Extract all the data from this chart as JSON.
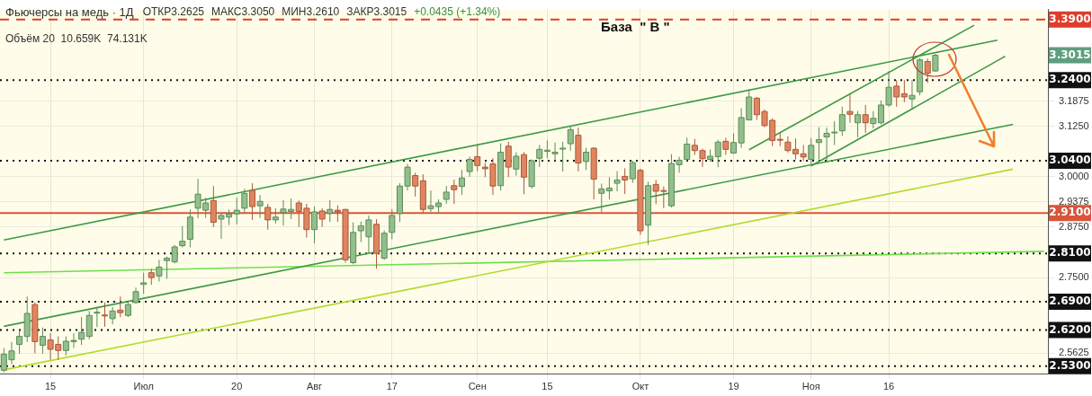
{
  "chart_data": {
    "type": "candlestick",
    "title": "Фьючерсы на медь · 1Д",
    "annotations": [
      "ОТКР3.2625",
      "МАКС3.3050",
      "МИН3.2610",
      "ЗАКР3.3015",
      "+0.0435 (+1.34%)",
      "Объём 20  10.659K  74.131K",
      "База  \" В \"",
      "3.3015"
    ],
    "categories": [
      null,
      null,
      null,
      null,
      null,
      null,
      "15",
      null,
      null,
      null,
      null,
      null,
      null,
      null,
      null,
      null,
      null,
      null,
      "Июл",
      null,
      null,
      null,
      null,
      null,
      null,
      null,
      null,
      null,
      null,
      null,
      "20",
      null,
      null,
      null,
      null,
      null,
      null,
      null,
      null,
      null,
      "Авг",
      null,
      null,
      null,
      null,
      null,
      null,
      null,
      null,
      null,
      "17",
      null,
      null,
      null,
      null,
      null,
      null,
      null,
      null,
      null,
      null,
      "Сен",
      null,
      null,
      null,
      null,
      null,
      null,
      null,
      null,
      "15",
      null,
      null,
      null,
      null,
      null,
      null,
      null,
      null,
      null,
      null,
      null,
      "Окт",
      null,
      null,
      null,
      null,
      null,
      null,
      null,
      null,
      null,
      null,
      null,
      "19",
      null,
      null,
      null,
      null,
      null,
      null,
      null,
      null,
      null,
      "Ноя",
      null,
      null,
      null,
      null,
      null,
      null,
      null,
      null,
      null,
      "16",
      null,
      null,
      null,
      null,
      null,
      null,
      null,
      null,
      null,
      null,
      null,
      null,
      null,
      null,
      null,
      null,
      null,
      null,
      null,
      null
    ],
    "ohlc": [
      [
        2.52,
        2.575,
        2.515,
        2.56
      ],
      [
        2.546,
        2.59,
        2.535,
        2.568
      ],
      [
        2.584,
        2.619,
        2.561,
        2.604
      ],
      [
        2.604,
        2.703,
        2.59,
        2.661
      ],
      [
        2.683,
        2.688,
        2.562,
        2.591
      ],
      [
        2.582,
        2.626,
        2.561,
        2.604
      ],
      [
        2.595,
        2.612,
        2.546,
        2.572
      ],
      [
        2.584,
        2.604,
        2.546,
        2.569
      ],
      [
        2.569,
        2.604,
        2.557,
        2.592
      ],
      [
        2.591,
        2.612,
        2.575,
        2.594
      ],
      [
        2.597,
        2.652,
        2.583,
        2.614
      ],
      [
        2.604,
        2.667,
        2.597,
        2.656
      ],
      [
        2.662,
        2.677,
        2.627,
        2.664
      ],
      [
        2.657,
        2.688,
        2.628,
        2.655
      ],
      [
        2.648,
        2.677,
        2.634,
        2.667
      ],
      [
        2.669,
        2.703,
        2.652,
        2.663
      ],
      [
        2.656,
        2.692,
        2.652,
        2.683
      ],
      [
        2.688,
        2.725,
        2.685,
        2.715
      ],
      [
        2.733,
        2.762,
        2.71,
        2.737
      ],
      [
        2.762,
        2.772,
        2.732,
        2.75
      ],
      [
        2.754,
        2.794,
        2.74,
        2.776
      ],
      [
        2.792,
        2.802,
        2.747,
        2.798
      ],
      [
        2.789,
        2.831,
        2.785,
        2.826
      ],
      [
        2.829,
        2.878,
        2.825,
        2.84
      ],
      [
        2.845,
        2.919,
        2.825,
        2.9
      ],
      [
        2.922,
        2.995,
        2.897,
        2.957
      ],
      [
        2.917,
        2.948,
        2.898,
        2.935
      ],
      [
        2.941,
        2.977,
        2.875,
        2.887
      ],
      [
        2.895,
        2.911,
        2.846,
        2.904
      ],
      [
        2.9,
        2.919,
        2.88,
        2.908
      ],
      [
        2.908,
        2.948,
        2.882,
        2.917
      ],
      [
        2.922,
        2.97,
        2.911,
        2.959
      ],
      [
        2.966,
        2.984,
        2.893,
        2.926
      ],
      [
        2.928,
        2.955,
        2.898,
        2.939
      ],
      [
        2.924,
        2.933,
        2.869,
        2.893
      ],
      [
        2.893,
        2.922,
        2.884,
        2.9
      ],
      [
        2.911,
        2.942,
        2.879,
        2.92
      ],
      [
        2.914,
        2.946,
        2.895,
        2.919
      ],
      [
        2.935,
        2.941,
        2.876,
        2.914
      ],
      [
        2.922,
        2.933,
        2.849,
        2.869
      ],
      [
        2.869,
        2.926,
        2.835,
        2.913
      ],
      [
        2.915,
        2.922,
        2.876,
        2.895
      ],
      [
        2.909,
        2.942,
        2.888,
        2.919
      ],
      [
        2.917,
        2.929,
        2.888,
        2.913
      ],
      [
        2.919,
        2.92,
        2.787,
        2.794
      ],
      [
        2.787,
        2.887,
        2.783,
        2.862
      ],
      [
        2.866,
        2.889,
        2.838,
        2.878
      ],
      [
        2.851,
        2.904,
        2.809,
        2.893
      ],
      [
        2.882,
        2.895,
        2.772,
        2.81
      ],
      [
        2.798,
        2.867,
        2.794,
        2.86
      ],
      [
        2.862,
        2.92,
        2.845,
        2.904
      ],
      [
        2.909,
        2.984,
        2.888,
        2.977
      ],
      [
        2.977,
        3.032,
        2.966,
        3.024
      ],
      [
        3.003,
        3.01,
        2.951,
        2.977
      ],
      [
        2.99,
        3.006,
        2.908,
        2.919
      ],
      [
        2.921,
        2.966,
        2.913,
        2.928
      ],
      [
        2.926,
        2.944,
        2.911,
        2.935
      ],
      [
        2.944,
        2.977,
        2.933,
        2.962
      ],
      [
        2.978,
        2.993,
        2.933,
        2.968
      ],
      [
        2.976,
        3.017,
        2.955,
        2.997
      ],
      [
        3.013,
        3.05,
        3.0,
        3.043
      ],
      [
        3.05,
        3.079,
        3.014,
        3.028
      ],
      [
        3.024,
        3.035,
        2.999,
        3.02
      ],
      [
        3.032,
        3.046,
        2.955,
        2.977
      ],
      [
        2.978,
        3.083,
        2.966,
        3.061
      ],
      [
        3.076,
        3.087,
        2.999,
        3.024
      ],
      [
        3.019,
        3.061,
        3.003,
        3.051
      ],
      [
        3.055,
        3.061,
        2.957,
        2.999
      ],
      [
        2.976,
        3.043,
        2.971,
        3.04
      ],
      [
        3.046,
        3.079,
        3.024,
        3.068
      ],
      [
        3.063,
        3.09,
        3.046,
        3.066
      ],
      [
        3.057,
        3.085,
        3.039,
        3.061
      ],
      [
        3.07,
        3.087,
        3.013,
        3.071
      ],
      [
        3.082,
        3.127,
        3.065,
        3.117
      ],
      [
        3.103,
        3.122,
        3.013,
        3.034
      ],
      [
        3.038,
        3.072,
        3.017,
        3.061
      ],
      [
        3.071,
        3.073,
        2.944,
        2.994
      ],
      [
        2.959,
        2.983,
        2.911,
        2.97
      ],
      [
        2.965,
        2.999,
        2.944,
        2.972
      ],
      [
        2.984,
        3.014,
        2.964,
        2.992
      ],
      [
        3.001,
        3.021,
        2.957,
        2.992
      ],
      [
        2.995,
        3.04,
        2.985,
        3.035
      ],
      [
        3.016,
        3.02,
        2.856,
        2.866
      ],
      [
        2.88,
        2.988,
        2.831,
        2.978
      ],
      [
        2.981,
        2.992,
        2.932,
        2.964
      ],
      [
        2.966,
        2.976,
        2.922,
        2.965
      ],
      [
        2.928,
        3.056,
        2.924,
        3.033
      ],
      [
        3.03,
        3.05,
        3.01,
        3.041
      ],
      [
        3.043,
        3.097,
        3.039,
        3.081
      ],
      [
        3.078,
        3.094,
        3.054,
        3.065
      ],
      [
        3.065,
        3.07,
        3.024,
        3.045
      ],
      [
        3.043,
        3.068,
        3.037,
        3.051
      ],
      [
        3.05,
        3.092,
        3.024,
        3.086
      ],
      [
        3.088,
        3.097,
        3.054,
        3.068
      ],
      [
        3.059,
        3.108,
        3.057,
        3.085
      ],
      [
        3.084,
        3.17,
        3.072,
        3.147
      ],
      [
        3.141,
        3.217,
        3.141,
        3.198
      ],
      [
        3.195,
        3.198,
        3.141,
        3.154
      ],
      [
        3.162,
        3.167,
        3.123,
        3.127
      ],
      [
        3.14,
        3.145,
        3.076,
        3.09
      ],
      [
        3.093,
        3.108,
        3.076,
        3.092
      ],
      [
        3.086,
        3.1,
        3.06,
        3.065
      ],
      [
        3.068,
        3.095,
        3.043,
        3.057
      ],
      [
        3.057,
        3.079,
        3.039,
        3.049
      ],
      [
        3.043,
        3.096,
        3.028,
        3.078
      ],
      [
        3.085,
        3.123,
        3.043,
        3.092
      ],
      [
        3.099,
        3.122,
        3.035,
        3.108
      ],
      [
        3.11,
        3.138,
        3.079,
        3.111
      ],
      [
        3.114,
        3.174,
        3.101,
        3.154
      ],
      [
        3.162,
        3.205,
        3.134,
        3.155
      ],
      [
        3.134,
        3.163,
        3.098,
        3.154
      ],
      [
        3.154,
        3.178,
        3.109,
        3.134
      ],
      [
        3.132,
        3.163,
        3.12,
        3.145
      ],
      [
        3.134,
        3.189,
        3.13,
        3.178
      ],
      [
        3.178,
        3.262,
        3.174,
        3.222
      ],
      [
        3.225,
        3.24,
        3.174,
        3.198
      ],
      [
        3.206,
        3.24,
        3.185,
        3.198
      ],
      [
        3.193,
        3.24,
        3.168,
        3.202
      ],
      [
        3.211,
        3.295,
        3.202,
        3.29
      ],
      [
        3.286,
        3.293,
        3.233,
        3.257
      ],
      [
        3.2625,
        3.305,
        3.261,
        3.3015
      ],
      null,
      null,
      null,
      null,
      null,
      null,
      null,
      null,
      null,
      null,
      null,
      null,
      null,
      null
    ],
    "series": [
      {
        "type": "line",
        "color": "#3c9a46",
        "values": [
          null,
          null,
          null,
          null,
          null,
          null,
          null,
          null,
          null,
          null,
          null,
          null,
          null,
          null,
          null,
          null,
          null,
          null,
          null,
          null,
          null,
          null,
          null,
          null,
          null,
          null,
          null,
          null,
          null,
          null,
          null,
          null,
          null,
          null,
          null,
          null,
          null,
          null,
          null,
          null,
          null,
          null,
          null,
          null,
          null,
          null,
          null,
          null,
          null,
          null,
          null,
          null,
          null,
          null,
          null,
          null,
          null,
          null,
          null,
          null,
          null,
          null,
          null,
          null,
          null,
          null,
          null,
          null,
          null,
          null,
          null,
          null,
          null,
          null,
          null,
          null,
          null,
          null,
          null,
          null,
          null,
          null,
          null,
          null,
          null,
          null,
          null,
          null,
          null,
          null,
          null,
          null,
          null,
          null,
          null,
          null,
          3.067,
          null,
          null,
          null,
          null,
          null,
          null,
          null,
          null,
          null,
          null,
          null,
          null,
          null,
          null,
          null,
          null,
          null,
          null,
          null,
          null,
          null,
          null,
          null,
          null,
          null,
          null,
          null,
          null,
          3.376,
          null,
          null,
          null,
          null,
          null,
          null,
          null,
          null,
          null
        ]
      },
      {
        "type": "line",
        "color": "#3c9a46",
        "values": [
          2.843,
          null,
          null,
          null,
          null,
          null,
          null,
          null,
          null,
          null,
          null,
          null,
          null,
          null,
          null,
          null,
          null,
          null,
          null,
          null,
          null,
          null,
          null,
          null,
          null,
          null,
          null,
          null,
          null,
          null,
          null,
          null,
          null,
          null,
          null,
          null,
          null,
          null,
          null,
          null,
          null,
          null,
          null,
          null,
          null,
          null,
          null,
          null,
          null,
          null,
          null,
          null,
          null,
          null,
          null,
          null,
          null,
          null,
          null,
          null,
          null,
          null,
          null,
          null,
          null,
          null,
          null,
          null,
          null,
          null,
          null,
          null,
          null,
          null,
          null,
          null,
          null,
          null,
          null,
          null,
          null,
          null,
          null,
          null,
          null,
          null,
          null,
          null,
          null,
          null,
          null,
          null,
          null,
          null,
          null,
          null,
          null,
          null,
          null,
          null,
          null,
          null,
          null,
          null,
          null,
          null,
          null,
          null,
          null,
          null,
          null,
          null,
          null,
          null,
          null,
          null,
          null,
          null,
          null,
          null,
          null,
          null,
          null,
          null,
          null,
          null,
          null,
          null,
          3.339,
          null,
          null,
          null,
          null,
          null,
          null
        ]
      },
      {
        "type": "line",
        "color": "#3c9a46",
        "values": [
          null,
          null,
          null,
          null,
          null,
          null,
          null,
          null,
          null,
          null,
          null,
          null,
          null,
          null,
          null,
          null,
          null,
          null,
          null,
          null,
          null,
          null,
          null,
          null,
          null,
          null,
          null,
          null,
          null,
          null,
          null,
          null,
          null,
          null,
          null,
          null,
          null,
          null,
          null,
          null,
          null,
          null,
          null,
          null,
          null,
          null,
          null,
          null,
          null,
          null,
          null,
          null,
          null,
          null,
          null,
          null,
          null,
          null,
          null,
          null,
          null,
          null,
          null,
          null,
          null,
          null,
          null,
          null,
          null,
          null,
          null,
          null,
          null,
          null,
          null,
          null,
          null,
          null,
          null,
          null,
          null,
          null,
          null,
          null,
          null,
          null,
          null,
          null,
          null,
          null,
          null,
          null,
          null,
          null,
          null,
          null,
          null,
          null,
          null,
          null,
          null,
          null,
          null,
          null,
          3.027,
          null,
          null,
          null,
          null,
          null,
          null,
          null,
          null,
          null,
          null,
          null,
          null,
          null,
          null,
          null,
          null,
          null,
          null,
          null,
          null,
          null,
          null,
          null,
          null,
          3.299,
          null,
          null,
          null,
          null,
          null
        ]
      },
      {
        "type": "line",
        "color": "#3c9a46",
        "values": [
          2.629,
          null,
          null,
          null,
          null,
          null,
          null,
          null,
          null,
          null,
          null,
          null,
          null,
          null,
          null,
          null,
          null,
          null,
          null,
          null,
          null,
          null,
          null,
          null,
          null,
          null,
          null,
          null,
          null,
          null,
          null,
          null,
          null,
          null,
          null,
          null,
          null,
          null,
          null,
          null,
          null,
          null,
          null,
          null,
          null,
          null,
          null,
          null,
          null,
          null,
          null,
          null,
          null,
          null,
          null,
          null,
          null,
          null,
          null,
          null,
          null,
          null,
          null,
          null,
          null,
          null,
          null,
          null,
          null,
          null,
          null,
          null,
          null,
          null,
          null,
          null,
          null,
          null,
          null,
          null,
          null,
          null,
          null,
          null,
          null,
          null,
          null,
          null,
          null,
          null,
          null,
          null,
          null,
          null,
          null,
          null,
          null,
          null,
          null,
          null,
          null,
          null,
          null,
          null,
          null,
          null,
          null,
          null,
          null,
          null,
          null,
          null,
          null,
          null,
          null,
          null,
          null,
          null,
          null,
          null,
          null,
          null,
          null,
          null,
          null,
          null,
          null,
          null,
          null,
          null,
          3.13,
          null,
          null,
          null,
          null
        ]
      },
      {
        "type": "line",
        "color": "#b4d92f",
        "values": [
          2.521,
          null,
          null,
          null,
          null,
          null,
          null,
          null,
          null,
          null,
          null,
          null,
          null,
          null,
          null,
          null,
          null,
          null,
          null,
          null,
          null,
          null,
          null,
          null,
          null,
          null,
          null,
          null,
          null,
          null,
          null,
          null,
          null,
          null,
          null,
          null,
          null,
          null,
          null,
          null,
          null,
          null,
          null,
          null,
          null,
          null,
          null,
          null,
          null,
          null,
          null,
          null,
          null,
          null,
          null,
          null,
          null,
          null,
          null,
          null,
          null,
          null,
          null,
          null,
          null,
          null,
          null,
          null,
          null,
          null,
          null,
          null,
          null,
          null,
          null,
          null,
          null,
          null,
          null,
          null,
          null,
          null,
          null,
          null,
          null,
          null,
          null,
          null,
          null,
          null,
          null,
          null,
          null,
          null,
          null,
          null,
          null,
          null,
          null,
          null,
          null,
          null,
          null,
          null,
          null,
          null,
          null,
          null,
          null,
          null,
          null,
          null,
          null,
          null,
          null,
          null,
          null,
          null,
          null,
          null,
          null,
          null,
          null,
          null,
          null,
          null,
          null,
          null,
          null,
          null,
          3.019,
          null,
          null,
          null,
          null
        ]
      },
      {
        "type": "line",
        "color": "#6ee04a",
        "values": [
          2.762,
          null,
          null,
          null,
          null,
          null,
          null,
          null,
          null,
          null,
          null,
          null,
          null,
          null,
          null,
          null,
          null,
          null,
          null,
          null,
          null,
          null,
          null,
          null,
          null,
          null,
          null,
          null,
          null,
          null,
          null,
          null,
          null,
          null,
          null,
          null,
          null,
          null,
          null,
          null,
          null,
          null,
          null,
          null,
          null,
          null,
          null,
          null,
          null,
          null,
          null,
          null,
          null,
          null,
          null,
          null,
          null,
          null,
          null,
          null,
          null,
          null,
          null,
          null,
          null,
          null,
          null,
          null,
          null,
          null,
          null,
          null,
          null,
          null,
          null,
          null,
          null,
          null,
          null,
          null,
          null,
          null,
          null,
          null,
          null,
          null,
          null,
          null,
          null,
          null,
          null,
          null,
          null,
          null,
          null,
          null,
          null,
          null,
          null,
          null,
          null,
          null,
          null,
          null,
          null,
          null,
          null,
          null,
          null,
          null,
          null,
          null,
          null,
          null,
          null,
          null,
          null,
          null,
          null,
          null,
          null,
          null,
          null,
          null,
          null,
          null,
          null,
          null,
          null,
          null,
          null,
          null,
          null,
          null,
          2.815
        ]
      }
    ],
    "ref_lines": [
      {
        "axis": "y",
        "value": 3.39,
        "label": "3.3900",
        "color": "#e03c2c",
        "line_style": "dashed"
      },
      {
        "axis": "y",
        "value": 3.24,
        "label": "3.2400",
        "color": "#111111",
        "line_style": "dotted"
      },
      {
        "axis": "y",
        "value": 3.04,
        "label": "3.0400",
        "color": "#111111",
        "line_style": "dotted"
      },
      {
        "axis": "y",
        "value": 2.91,
        "label": "2.9100",
        "color": "#d9553a",
        "line_style": "solid"
      },
      {
        "axis": "y",
        "value": 2.81,
        "label": "2.8100",
        "color": "#111111",
        "line_style": "dotted"
      },
      {
        "axis": "y",
        "value": 2.69,
        "label": "2.6900",
        "color": "#111111",
        "line_style": "dotted"
      },
      {
        "axis": "y",
        "value": 2.62,
        "label": "2.6200",
        "color": "#111111",
        "line_style": "dotted"
      },
      {
        "axis": "y",
        "value": 2.53,
        "label": "2.5300",
        "color": "#111111",
        "line_style": "dotted"
      }
    ],
    "ylim": [
      2.51,
      3.415
    ],
    "yticks": [
      {
        "value": 3.1875,
        "label": "3.1875"
      },
      {
        "value": 3.125,
        "label": "3.1250"
      },
      {
        "value": 3,
        "label": "3.0000"
      },
      {
        "value": 2.9375,
        "label": "2.9375"
      },
      {
        "value": 2.875,
        "label": "2.8750"
      },
      {
        "value": 2.75,
        "label": "2.7500"
      },
      {
        "value": 2.5625,
        "label": "2.5625"
      }
    ],
    "grid": true,
    "legend": false
  }
}
